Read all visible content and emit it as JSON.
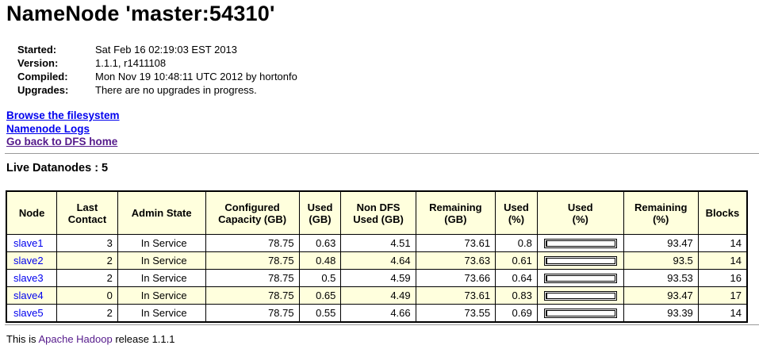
{
  "title": "NameNode 'master:54310'",
  "info": [
    {
      "key": "Started:",
      "value": "Sat Feb 16 02:19:03 EST 2013"
    },
    {
      "key": "Version:",
      "value": "1.1.1, r1411108"
    },
    {
      "key": "Compiled:",
      "value": "Mon Nov 19 10:48:11 UTC 2012 by hortonfo"
    },
    {
      "key": "Upgrades:",
      "value": "There are no upgrades in progress."
    }
  ],
  "links": {
    "browse": "Browse the filesystem",
    "logs": "Namenode Logs",
    "home": "Go back to DFS home"
  },
  "live_heading": "Live Datanodes : 5",
  "table": {
    "headers": {
      "node": "Node",
      "last_contact_1": "Last",
      "last_contact_2": "Contact",
      "admin": "Admin State",
      "capacity_1": "Configured",
      "capacity_2": "Capacity (GB)",
      "used_1": "Used",
      "used_2": "(GB)",
      "nondfs_1": "Non DFS",
      "nondfs_2": "Used (GB)",
      "remaining_1": "Remaining",
      "remaining_2": "(GB)",
      "usedpct_1": "Used",
      "usedpct_2": "(%)",
      "usedbar_1": "Used",
      "usedbar_2": "(%)",
      "rempct_1": "Remaining",
      "rempct_2": "(%)",
      "blocks": "Blocks"
    },
    "rows": [
      {
        "node": "slave1",
        "last_contact": "3",
        "admin": "In Service",
        "capacity": "78.75",
        "used": "0.63",
        "nondfs": "4.51",
        "remaining": "73.61",
        "used_pct": "0.8",
        "used_fraction": 0.008,
        "remaining_pct": "93.47",
        "blocks": "14"
      },
      {
        "node": "slave2",
        "last_contact": "2",
        "admin": "In Service",
        "capacity": "78.75",
        "used": "0.48",
        "nondfs": "4.64",
        "remaining": "73.63",
        "used_pct": "0.61",
        "used_fraction": 0.0061,
        "remaining_pct": "93.5",
        "blocks": "14"
      },
      {
        "node": "slave3",
        "last_contact": "2",
        "admin": "In Service",
        "capacity": "78.75",
        "used": "0.5",
        "nondfs": "4.59",
        "remaining": "73.66",
        "used_pct": "0.64",
        "used_fraction": 0.0064,
        "remaining_pct": "93.53",
        "blocks": "16"
      },
      {
        "node": "slave4",
        "last_contact": "0",
        "admin": "In Service",
        "capacity": "78.75",
        "used": "0.65",
        "nondfs": "4.49",
        "remaining": "73.61",
        "used_pct": "0.83",
        "used_fraction": 0.0083,
        "remaining_pct": "93.47",
        "blocks": "17"
      },
      {
        "node": "slave5",
        "last_contact": "2",
        "admin": "In Service",
        "capacity": "78.75",
        "used": "0.55",
        "nondfs": "4.66",
        "remaining": "73.55",
        "used_pct": "0.69",
        "used_fraction": 0.0069,
        "remaining_pct": "93.39",
        "blocks": "14"
      }
    ]
  },
  "footer": {
    "prefix": "This is ",
    "link": "Apache Hadoop",
    "suffix": " release 1.1.1"
  }
}
